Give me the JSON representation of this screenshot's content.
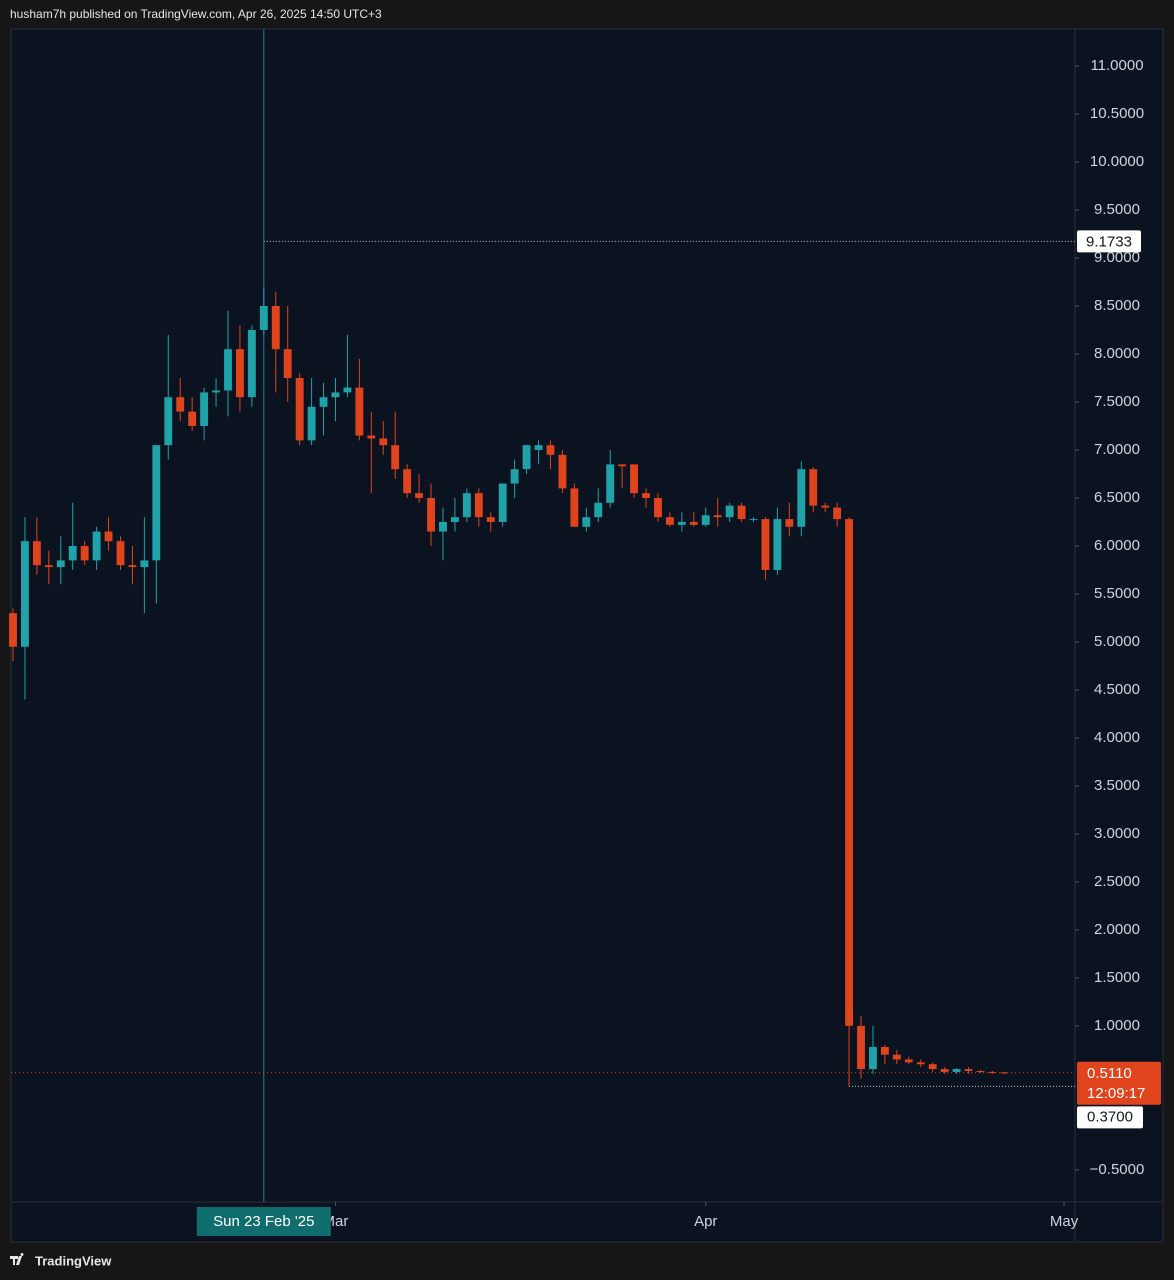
{
  "header": "husham7h published on TradingView.com, Apr 26, 2025 14:50 UTC+3",
  "footer": "TradingView",
  "chart_data": {
    "type": "candlestick",
    "x": [
      "2025-02-02",
      "2025-02-03",
      "2025-02-04",
      "2025-02-05",
      "2025-02-06",
      "2025-02-07",
      "2025-02-08",
      "2025-02-09",
      "2025-02-10",
      "2025-02-11",
      "2025-02-12",
      "2025-02-13",
      "2025-02-14",
      "2025-02-15",
      "2025-02-16",
      "2025-02-17",
      "2025-02-18",
      "2025-02-19",
      "2025-02-20",
      "2025-02-21",
      "2025-02-22",
      "2025-02-23",
      "2025-02-24",
      "2025-02-25",
      "2025-02-26",
      "2025-02-27",
      "2025-02-28",
      "2025-03-01",
      "2025-03-02",
      "2025-03-03",
      "2025-03-04",
      "2025-03-05",
      "2025-03-06",
      "2025-03-07",
      "2025-03-08",
      "2025-03-09",
      "2025-03-10",
      "2025-03-11",
      "2025-03-12",
      "2025-03-13",
      "2025-03-14",
      "2025-03-15",
      "2025-03-16",
      "2025-03-17",
      "2025-03-18",
      "2025-03-19",
      "2025-03-20",
      "2025-03-21",
      "2025-03-22",
      "2025-03-23",
      "2025-03-24",
      "2025-03-25",
      "2025-03-26",
      "2025-03-27",
      "2025-03-28",
      "2025-03-29",
      "2025-03-30",
      "2025-03-31",
      "2025-04-01",
      "2025-04-02",
      "2025-04-03",
      "2025-04-04",
      "2025-04-05",
      "2025-04-06",
      "2025-04-07",
      "2025-04-08",
      "2025-04-09",
      "2025-04-10",
      "2025-04-11",
      "2025-04-12",
      "2025-04-13",
      "2025-04-14",
      "2025-04-15",
      "2025-04-16",
      "2025-04-17",
      "2025-04-18",
      "2025-04-19",
      "2025-04-20",
      "2025-04-21",
      "2025-04-22",
      "2025-04-23",
      "2025-04-24",
      "2025-04-25",
      "2025-04-26"
    ],
    "open": [
      5.3,
      4.95,
      6.05,
      5.8,
      5.78,
      5.85,
      6.0,
      5.85,
      6.15,
      6.05,
      5.8,
      5.78,
      5.85,
      7.05,
      7.55,
      7.4,
      7.25,
      7.6,
      7.62,
      8.05,
      7.55,
      8.25,
      8.5,
      8.05,
      7.75,
      7.1,
      7.45,
      7.55,
      7.6,
      7.65,
      7.15,
      7.12,
      7.05,
      6.8,
      6.55,
      6.5,
      6.15,
      6.25,
      6.3,
      6.55,
      6.3,
      6.25,
      6.65,
      6.8,
      7.0,
      7.05,
      6.95,
      6.6,
      6.2,
      6.3,
      6.45,
      6.85,
      6.85,
      6.55,
      6.5,
      6.3,
      6.22,
      6.25,
      6.22,
      6.32,
      6.3,
      6.42,
      6.28,
      6.28,
      5.75,
      6.28,
      6.2,
      6.8,
      6.42,
      6.4,
      6.28,
      1.0,
      0.55,
      0.78,
      0.7,
      0.65,
      0.62,
      0.6,
      0.55,
      0.52,
      0.55,
      0.53,
      0.52,
      0.515
    ],
    "high": [
      5.35,
      6.3,
      6.3,
      5.95,
      6.1,
      6.45,
      6.05,
      6.2,
      6.3,
      6.1,
      6.0,
      6.3,
      7.05,
      8.2,
      7.75,
      7.55,
      7.65,
      7.75,
      8.45,
      8.3,
      8.3,
      8.7,
      8.65,
      8.5,
      7.8,
      7.75,
      7.7,
      7.75,
      8.2,
      7.95,
      7.4,
      7.3,
      7.4,
      6.85,
      6.75,
      6.65,
      6.4,
      6.5,
      6.6,
      6.6,
      6.35,
      6.65,
      6.9,
      7.05,
      7.1,
      7.1,
      7.0,
      6.65,
      6.4,
      6.6,
      7.0,
      6.85,
      6.85,
      6.6,
      6.55,
      6.35,
      6.35,
      6.35,
      6.4,
      6.5,
      6.45,
      6.45,
      6.3,
      6.3,
      6.4,
      6.45,
      6.88,
      6.82,
      6.45,
      6.45,
      6.3,
      1.1,
      1.0,
      0.8,
      0.75,
      0.68,
      0.65,
      0.62,
      0.57,
      0.56,
      0.57,
      0.54,
      0.53,
      0.52
    ],
    "low": [
      4.8,
      4.4,
      5.7,
      5.6,
      5.6,
      5.75,
      5.8,
      5.75,
      5.95,
      5.75,
      5.6,
      5.3,
      5.4,
      6.9,
      7.3,
      7.2,
      7.1,
      7.45,
      7.35,
      7.4,
      7.45,
      8.2,
      7.6,
      7.5,
      7.05,
      7.05,
      7.15,
      7.3,
      7.55,
      7.1,
      6.55,
      6.95,
      6.7,
      6.5,
      6.45,
      6.0,
      5.85,
      6.15,
      6.25,
      6.2,
      6.15,
      6.2,
      6.5,
      6.75,
      6.85,
      6.8,
      6.55,
      6.2,
      6.15,
      6.25,
      6.4,
      6.6,
      6.5,
      6.4,
      6.25,
      6.2,
      6.15,
      6.2,
      6.2,
      6.2,
      6.25,
      6.25,
      6.25,
      5.65,
      5.7,
      6.1,
      6.1,
      6.35,
      6.35,
      6.2,
      0.37,
      0.45,
      0.5,
      0.6,
      0.6,
      0.6,
      0.57,
      0.52,
      0.5,
      0.5,
      0.5,
      0.51,
      0.5,
      0.5
    ],
    "close": [
      4.95,
      6.05,
      5.8,
      5.78,
      5.85,
      6.0,
      5.85,
      6.15,
      6.05,
      5.8,
      5.78,
      5.85,
      7.05,
      7.55,
      7.4,
      7.25,
      7.6,
      7.62,
      8.05,
      7.55,
      8.25,
      8.5,
      8.05,
      7.75,
      7.1,
      7.45,
      7.55,
      7.6,
      7.65,
      7.15,
      7.12,
      7.05,
      6.8,
      6.55,
      6.5,
      6.15,
      6.25,
      6.3,
      6.55,
      6.3,
      6.25,
      6.65,
      6.8,
      7.05,
      7.05,
      6.95,
      6.6,
      6.2,
      6.3,
      6.45,
      6.85,
      6.83,
      6.55,
      6.5,
      6.3,
      6.22,
      6.25,
      6.22,
      6.32,
      6.3,
      6.42,
      6.28,
      6.28,
      5.75,
      6.28,
      6.2,
      6.8,
      6.42,
      6.4,
      6.28,
      1.0,
      0.55,
      0.78,
      0.7,
      0.65,
      0.62,
      0.6,
      0.55,
      0.52,
      0.55,
      0.53,
      0.52,
      0.515,
      0.511
    ],
    "up_color": "#1fa2a8",
    "down_color": "#e0441c",
    "xlim": [
      "2025-02-02",
      "2025-05-02"
    ],
    "ylim": [
      -0.835,
      11.386
    ],
    "xticks": [
      {
        "value": "2025-03-01",
        "label": "Mar"
      },
      {
        "value": "2025-04-01",
        "label": "Apr"
      },
      {
        "value": "2025-05-01",
        "label": "May"
      }
    ],
    "yticks": [
      {
        "value": 11,
        "label": "11.0000"
      },
      {
        "value": 10.5,
        "label": "10.5000"
      },
      {
        "value": 10,
        "label": "10.0000"
      },
      {
        "value": 9.5,
        "label": "9.5000"
      },
      {
        "value": 9,
        "label": "9.0000"
      },
      {
        "value": 8.5,
        "label": "8.5000"
      },
      {
        "value": 8,
        "label": "8.0000"
      },
      {
        "value": 7.5,
        "label": "7.5000"
      },
      {
        "value": 7,
        "label": "7.0000"
      },
      {
        "value": 6.5,
        "label": "6.5000"
      },
      {
        "value": 6,
        "label": "6.0000"
      },
      {
        "value": 5.5,
        "label": "5.5000"
      },
      {
        "value": 5,
        "label": "5.0000"
      },
      {
        "value": 4.5,
        "label": "4.5000"
      },
      {
        "value": 4,
        "label": "4.0000"
      },
      {
        "value": 3.5,
        "label": "3.5000"
      },
      {
        "value": 3,
        "label": "3.0000"
      },
      {
        "value": 2.5,
        "label": "2.5000"
      },
      {
        "value": 2,
        "label": "2.0000"
      },
      {
        "value": 1.5,
        "label": "1.5000"
      },
      {
        "value": 1,
        "label": "1.0000"
      },
      {
        "value": -0.5,
        "label": "−0.5000"
      }
    ],
    "crosshair": {
      "x": {
        "value": "2025-02-23",
        "label": "Sun 23 Feb '25"
      },
      "y": 9.1733
    },
    "last_price": {
      "value": 0.511,
      "label": "0.5110"
    },
    "countdown": "12:09:17",
    "low_marker": {
      "value": 0.37,
      "label": "0.3700"
    }
  }
}
